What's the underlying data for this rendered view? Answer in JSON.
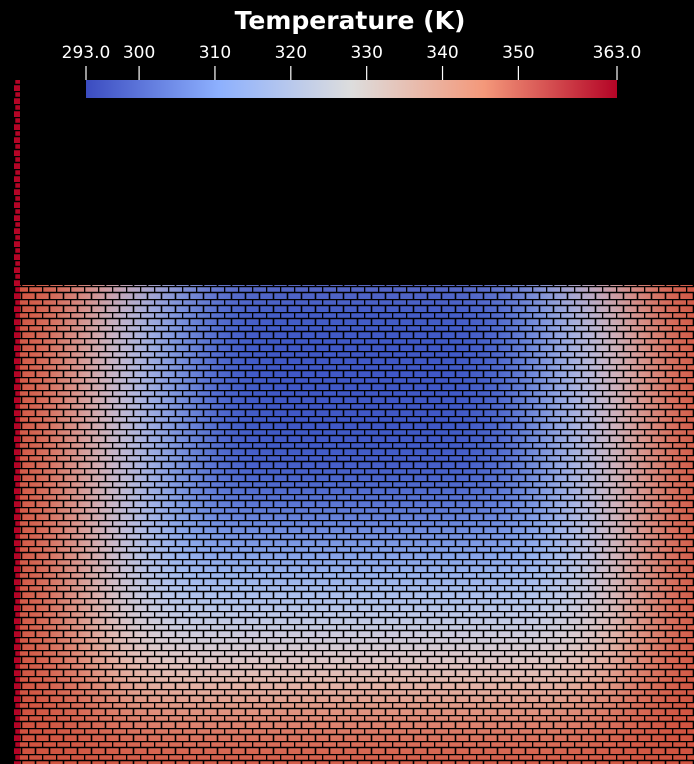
{
  "colorbar": {
    "title": "Temperature (K)",
    "range": [
      293,
      363
    ],
    "ticks": [
      {
        "value": 293,
        "label": "293.0"
      },
      300,
      310,
      320,
      330,
      340,
      350,
      {
        "value": 363,
        "label": "363.0"
      }
    ],
    "colors": [
      "#3b4cc0",
      "#8db0fe",
      "#dddddd",
      "#f4987a",
      "#b40426"
    ]
  }
}
